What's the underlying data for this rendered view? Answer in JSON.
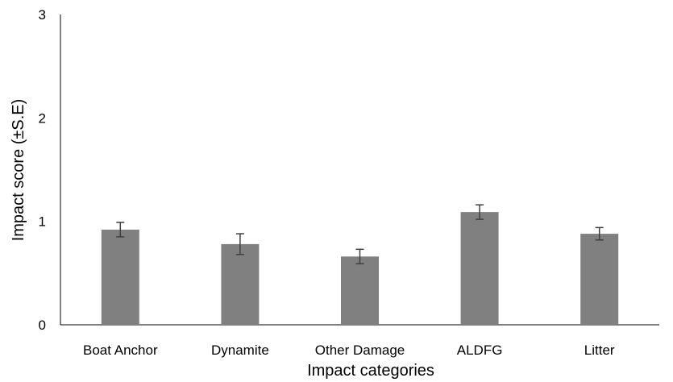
{
  "chart_data": {
    "type": "bar",
    "title": "",
    "xlabel": "Impact categories",
    "ylabel": "Impact score (±S.E)",
    "categories": [
      "Boat Anchor",
      "Dynamite",
      "Other Damage",
      "ALDFG",
      "Litter"
    ],
    "series": [
      {
        "values": [
          0.92,
          0.78,
          0.66,
          1.09,
          0.88
        ],
        "errors": [
          0.07,
          0.1,
          0.07,
          0.07,
          0.06
        ]
      }
    ],
    "ylim": [
      0,
      3
    ],
    "yticks": [
      0,
      1,
      2,
      3
    ],
    "grid": false,
    "legend": "none",
    "colors": {
      "bar": "#808080",
      "error_bar": "#404040",
      "axis": "#000000"
    }
  }
}
